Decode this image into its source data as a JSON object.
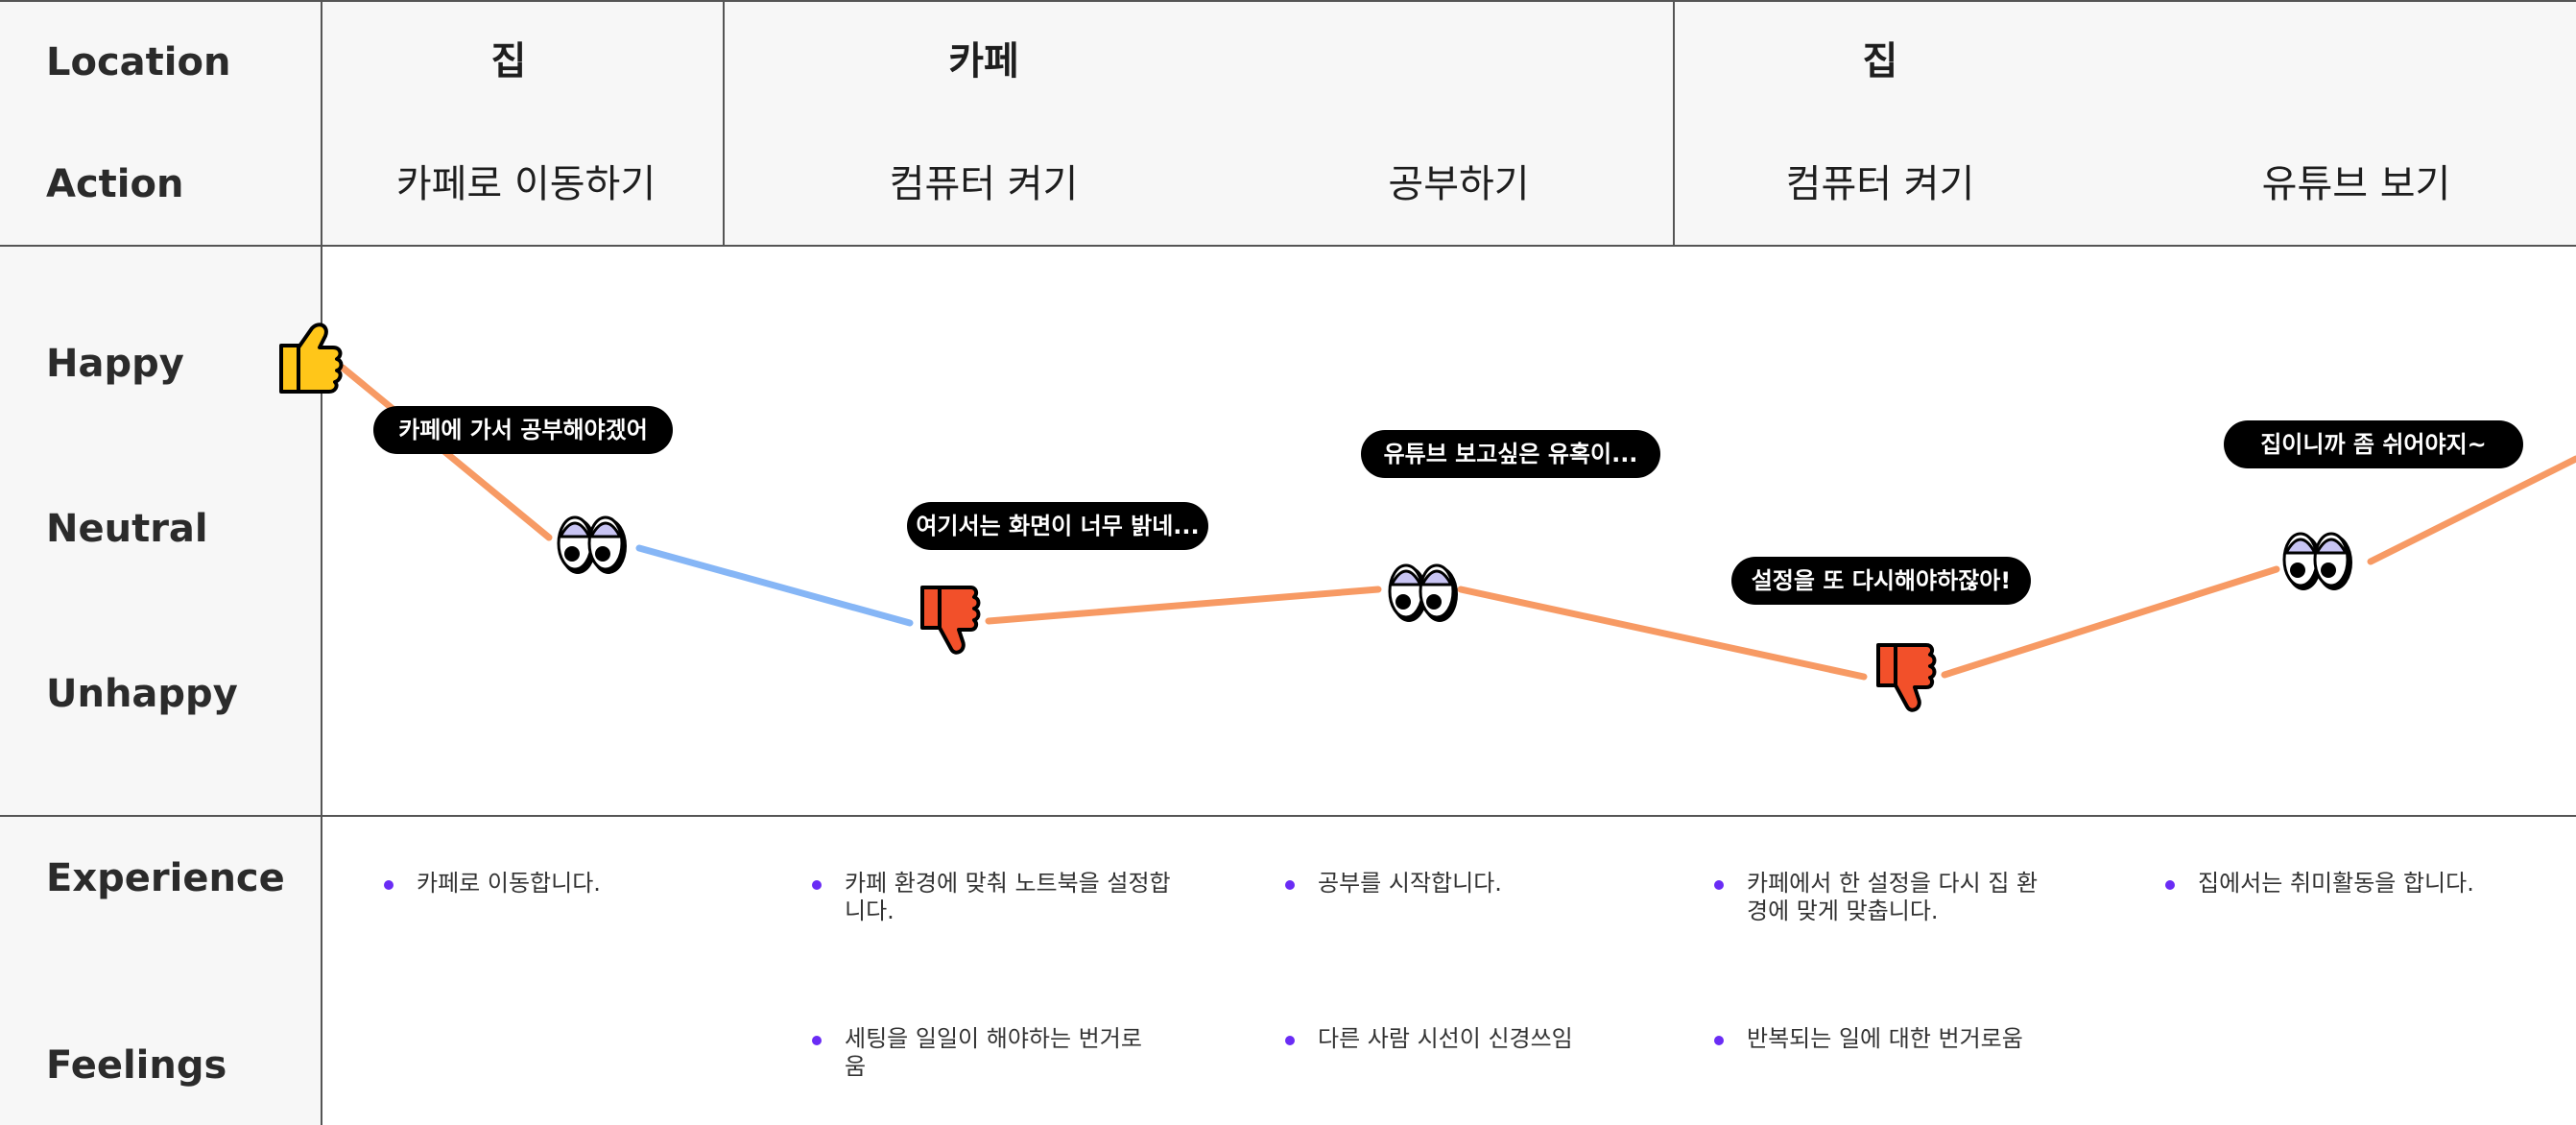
{
  "row_labels": {
    "location": "Location",
    "action": "Action",
    "happy": "Happy",
    "neutral": "Neutral",
    "unhappy": "Unhappy",
    "experience": "Experience",
    "feelings": "Feelings"
  },
  "locations": [
    "집",
    "카페",
    "집"
  ],
  "actions": [
    "카페로 이동하기",
    "컴퓨터 켜기",
    "공부하기",
    "컴퓨터 켜기",
    "유튜브 보기"
  ],
  "bubbles": [
    "카페에 가서 공부해야겠어",
    "여기서는 화면이 너무 밝네...",
    "유튜브 보고싶은 유혹이...",
    "설정을 또 다시해야하잖아!",
    "집이니까 좀 쉬어야지~"
  ],
  "experience": [
    "카페로 이동합니다.",
    "카페 환경에 맞춰 노트북을 설정합니다.",
    "공부를 시작합니다.",
    "카페에서 한 설정을 다시 집 환경에 맞게 맞춥니다.",
    "집에서는 취미활동을 합니다."
  ],
  "feelings": [
    "세팅을 일일이 해야하는 번거로움",
    "다른 사람 시선이 신경쓰임",
    "반복되는 일에 대한 번거로움"
  ],
  "journey": {
    "levels": [
      "Happy",
      "Neutral",
      "Unhappy",
      "Neutral",
      "Unhappy",
      "Neutral"
    ],
    "markers": [
      "thumbs-up-icon",
      "eyes-icon",
      "thumbs-down-icon",
      "eyes-icon",
      "thumbs-down-icon",
      "eyes-icon"
    ],
    "colors": {
      "positive": "#f79a64",
      "negative": "#86b6f6",
      "thumbs_up": "#ffc619",
      "thumbs_down": "#f2502a",
      "eye_iris": "#c8c4f3",
      "bullet": "#6a2cf5"
    }
  }
}
